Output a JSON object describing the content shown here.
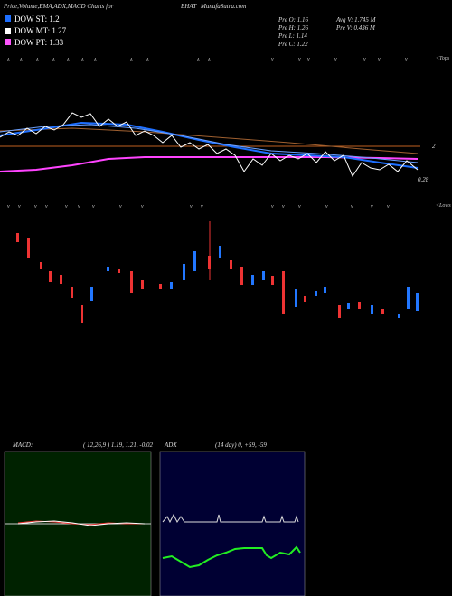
{
  "header": {
    "title": "Price,Volume,EMA,ADX,MACD Charts for",
    "symbol": "BHAT",
    "site": "MunafaSutra.com"
  },
  "legend": [
    {
      "label": "DOW ST: 1.2",
      "color": "#1e6fff"
    },
    {
      "label": "DOW MT: 1.27",
      "color": "#ffffff"
    },
    {
      "label": "DOW PT: 1.33",
      "color": "#ff55ff"
    }
  ],
  "stats": [
    "Pre  O: 1.16",
    "Pre  H: 1.26",
    "Pre  L: 1.14",
    "Pre  C: 1.22",
    "Avg V: 1.745 M",
    "Pre  V: 0.436  M"
  ],
  "price_panel": {
    "level_label": "2",
    "last_label": "0.28",
    "tops_label": "<Tops",
    "lows_label": "<Lows"
  },
  "macd_panel": {
    "title": "MACD:",
    "params": "( 12,26,9 ) 1.19, 1.21, -0.02"
  },
  "adx_panel": {
    "title": "ADX",
    "params": "(14  day) 0, +59, -59"
  }
}
